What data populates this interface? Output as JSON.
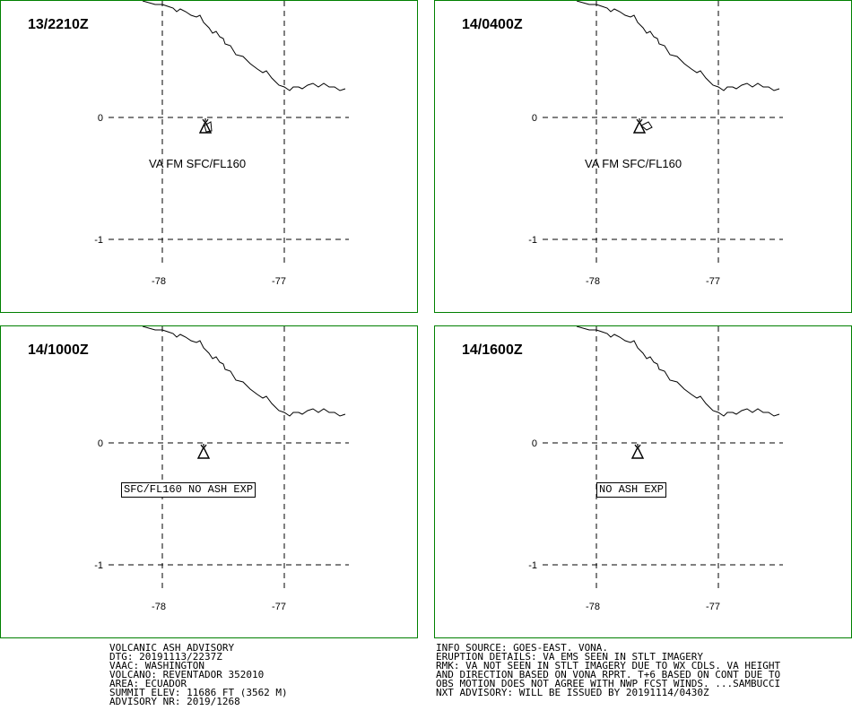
{
  "panels": [
    {
      "time": "13/2210Z",
      "label": "VA FM SFC/FL160",
      "boxed": false
    },
    {
      "time": "14/0400Z",
      "label": "VA FM SFC/FL160",
      "boxed": false
    },
    {
      "time": "14/1000Z",
      "label": "SFC/FL160 NO ASH EXP",
      "boxed": true
    },
    {
      "time": "14/1600Z",
      "label": "NO ASH EXP",
      "boxed": true
    }
  ],
  "axes": {
    "lat_labels": [
      "0",
      "-1"
    ],
    "lon_labels": [
      "-78",
      "-77"
    ]
  },
  "advisory_left": [
    "VOLCANIC ASH ADVISORY",
    "DTG: 20191113/2237Z",
    "VAAC: WASHINGTON",
    "VOLCANO: REVENTADOR 352010",
    "AREA: ECUADOR",
    "SUMMIT ELEV: 11686 FT (3562 M)",
    "ADVISORY NR: 2019/1268"
  ],
  "advisory_right": [
    "INFO SOURCE: GOES-EAST. VONA.",
    "ERUPTION DETAILS: VA EMS SEEN IN STLT IMAGERY",
    "RMK: VA NOT SEEN IN STLT IMAGERY DUE TO WX CDLS. VA HEIGHT",
    "AND DIRECTION BASED ON VONA RPRT. T+6 BASED ON CONT DUE TO",
    "OBS MOTION DOES NOT AGREE WITH NWP FCST WINDS. ...SAMBUCCI",
    "NXT ADVISORY: WILL BE ISSUED BY 20191114/0430Z"
  ],
  "colors": {
    "frame": "#008000",
    "ink": "#000000"
  },
  "icons": {
    "volcano": "volcano-icon"
  }
}
